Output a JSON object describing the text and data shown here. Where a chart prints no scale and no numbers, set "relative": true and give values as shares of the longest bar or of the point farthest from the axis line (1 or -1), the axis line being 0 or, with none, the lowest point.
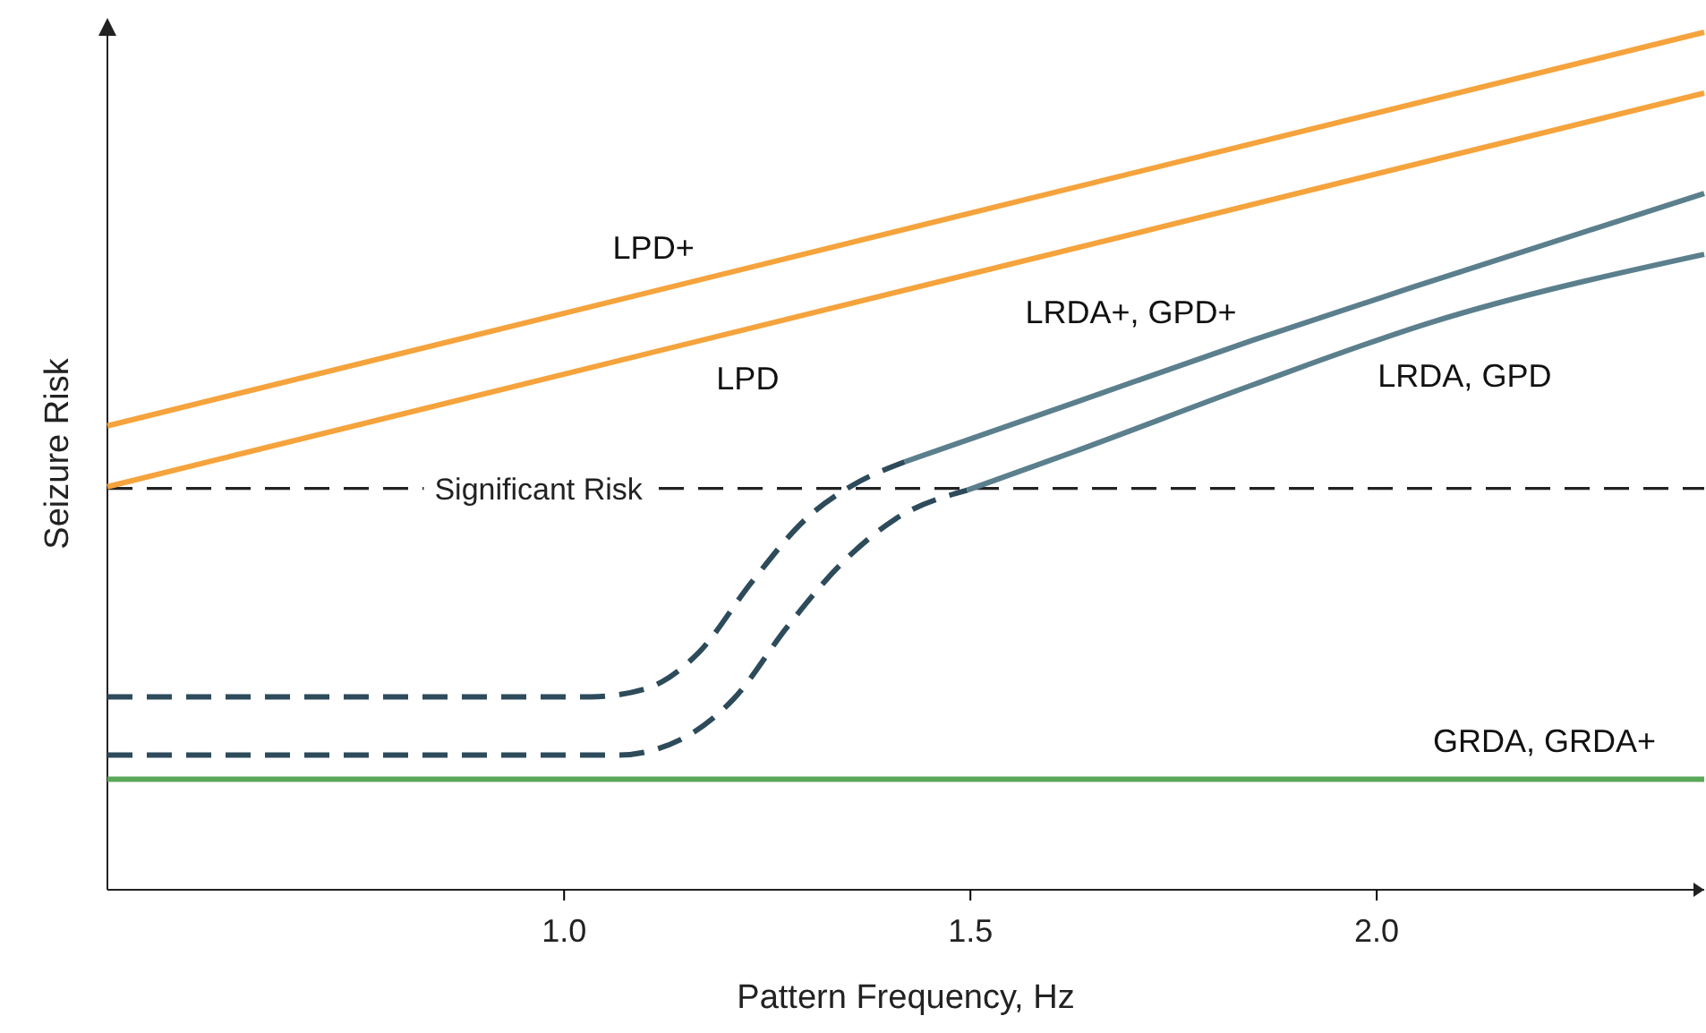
{
  "chart_data": {
    "type": "line",
    "xlabel": "Pattern Frequency, Hz",
    "ylabel": "Seizure Risk",
    "relative": true,
    "xlim": [
      0.438,
      2.403
    ],
    "xticks": [
      {
        "value": 1,
        "label": "1.0"
      },
      {
        "value": 1.5,
        "label": "1.5"
      },
      {
        "value": 2,
        "label": "2.0"
      }
    ],
    "grid": false,
    "legend": false,
    "marker": "none",
    "tick_labels": "x",
    "ref_lines": [
      {
        "axis": "y",
        "value": 0.468,
        "label": "Significant Risk",
        "color": "#222222",
        "line_style": "dashed"
      }
    ],
    "series": [
      {
        "name": "LPD+",
        "color": "#f5a33c",
        "line_style": "solid",
        "x": [
          0.438,
          2.403
        ],
        "values": [
          0.541,
          1
        ]
      },
      {
        "name": "LPD",
        "color": "#f5a33c",
        "line_style": "solid",
        "x": [
          0.438,
          2.403
        ],
        "values": [
          0.47,
          0.929
        ]
      },
      {
        "color": "#2d4b5a",
        "line_style": "dashed",
        "x": [
          0.438,
          1.033,
          1.099,
          1.165,
          1.231,
          1.297,
          1.352,
          1.419
        ],
        "values": [
          0.225,
          0.225,
          0.234,
          0.276,
          0.359,
          0.432,
          0.47,
          0.499
        ]
      },
      {
        "name": "LRDA+, GPD+",
        "color": "#5b7f8c",
        "line_style": "solid",
        "x": [
          1.419,
          1.628,
          1.848,
          2.068,
          2.403
        ],
        "values": [
          0.499,
          0.568,
          0.641,
          0.71,
          0.812
        ]
      },
      {
        "color": "#2d4b5a",
        "line_style": "dashed",
        "x": [
          0.438,
          1.066,
          1.143,
          1.209,
          1.275,
          1.341,
          1.407,
          1.496
        ],
        "values": [
          0.157,
          0.157,
          0.175,
          0.223,
          0.307,
          0.38,
          0.432,
          0.466
        ]
      },
      {
        "name": "LRDA, GPD",
        "color": "#5b7f8c",
        "line_style": "solid",
        "x": [
          1.496,
          1.628,
          1.848,
          2.068,
          2.403
        ],
        "values": [
          0.466,
          0.511,
          0.589,
          0.662,
          0.741
        ]
      },
      {
        "name": "GRDA, GRDA+",
        "color": "#5aa85a",
        "line_style": "solid",
        "x": [
          0.438,
          2.403
        ],
        "values": [
          0.129,
          0.129
        ]
      }
    ]
  }
}
